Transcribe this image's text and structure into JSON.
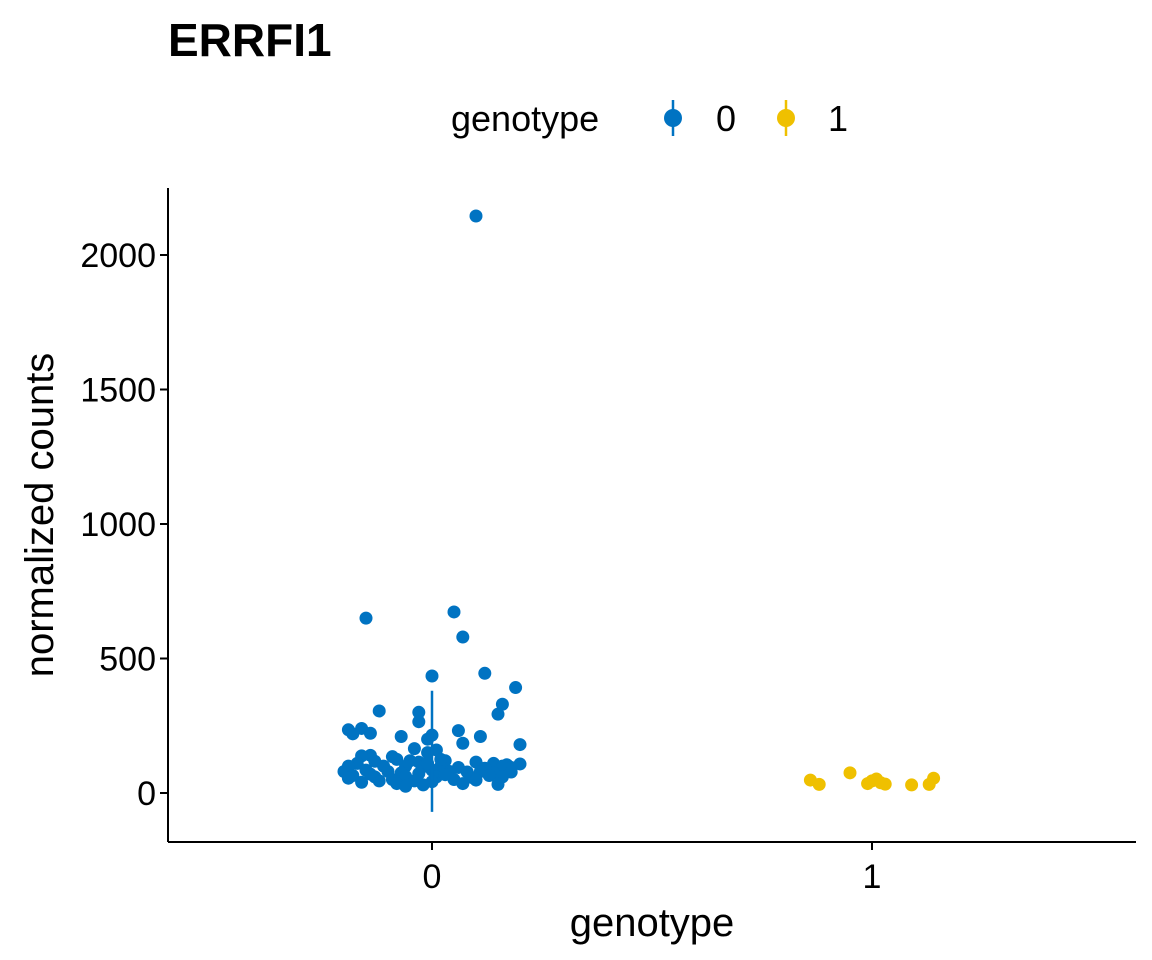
{
  "chart_data": {
    "type": "scatter",
    "title": "ERRFI1",
    "xlabel": "genotype",
    "ylabel": "normalized counts",
    "categories": [
      "0",
      "1"
    ],
    "ylim": [
      -180,
      2250
    ],
    "yticks": [
      0,
      500,
      1000,
      1500,
      2000
    ],
    "grid": false,
    "legend": {
      "title": "genotype",
      "position": "top",
      "entries": [
        "0",
        "1"
      ]
    },
    "colors": {
      "0": "#0073C2",
      "1": "#EFC000"
    },
    "series": [
      {
        "name": "0",
        "error_bar": {
          "x": 0,
          "low": -70,
          "high": 380
        },
        "points": [
          {
            "x": 0.1,
            "y": 2145
          },
          {
            "x": 0.05,
            "y": 673
          },
          {
            "x": -0.15,
            "y": 650
          },
          {
            "x": 0.07,
            "y": 580
          },
          {
            "x": 0.12,
            "y": 445
          },
          {
            "x": 0.0,
            "y": 435
          },
          {
            "x": 0.19,
            "y": 392
          },
          {
            "x": 0.16,
            "y": 330
          },
          {
            "x": -0.12,
            "y": 305
          },
          {
            "x": -0.03,
            "y": 300
          },
          {
            "x": 0.15,
            "y": 293
          },
          {
            "x": -0.03,
            "y": 265
          },
          {
            "x": -0.19,
            "y": 235
          },
          {
            "x": -0.16,
            "y": 240
          },
          {
            "x": 0.06,
            "y": 232
          },
          {
            "x": -0.18,
            "y": 220
          },
          {
            "x": 0.0,
            "y": 215
          },
          {
            "x": 0.11,
            "y": 210
          },
          {
            "x": -0.07,
            "y": 210
          },
          {
            "x": -0.14,
            "y": 222
          },
          {
            "x": -0.01,
            "y": 200
          },
          {
            "x": 0.07,
            "y": 185
          },
          {
            "x": 0.2,
            "y": 180
          },
          {
            "x": -0.04,
            "y": 165
          },
          {
            "x": 0.01,
            "y": 160
          },
          {
            "x": -0.01,
            "y": 150
          },
          {
            "x": -0.14,
            "y": 140
          },
          {
            "x": -0.16,
            "y": 138
          },
          {
            "x": -0.09,
            "y": 135
          },
          {
            "x": -0.08,
            "y": 125
          },
          {
            "x": -0.05,
            "y": 120
          },
          {
            "x": -0.13,
            "y": 118
          },
          {
            "x": -0.17,
            "y": 110
          },
          {
            "x": -0.03,
            "y": 115
          },
          {
            "x": 0.03,
            "y": 120
          },
          {
            "x": 0.1,
            "y": 115
          },
          {
            "x": 0.14,
            "y": 110
          },
          {
            "x": 0.17,
            "y": 105
          },
          {
            "x": 0.2,
            "y": 108
          },
          {
            "x": -0.19,
            "y": 100
          },
          {
            "x": -0.11,
            "y": 100
          },
          {
            "x": -0.06,
            "y": 100
          },
          {
            "x": -0.02,
            "y": 98
          },
          {
            "x": 0.02,
            "y": 100
          },
          {
            "x": 0.06,
            "y": 95
          },
          {
            "x": 0.12,
            "y": 92
          },
          {
            "x": 0.16,
            "y": 100
          },
          {
            "x": 0.18,
            "y": 95
          },
          {
            "x": -0.2,
            "y": 80
          },
          {
            "x": -0.15,
            "y": 85
          },
          {
            "x": -0.1,
            "y": 80
          },
          {
            "x": -0.07,
            "y": 75
          },
          {
            "x": -0.03,
            "y": 72
          },
          {
            "x": 0.0,
            "y": 85
          },
          {
            "x": 0.04,
            "y": 80
          },
          {
            "x": 0.08,
            "y": 78
          },
          {
            "x": 0.11,
            "y": 80
          },
          {
            "x": 0.14,
            "y": 75
          },
          {
            "x": 0.18,
            "y": 78
          },
          {
            "x": -0.18,
            "y": 65
          },
          {
            "x": -0.13,
            "y": 60
          },
          {
            "x": -0.06,
            "y": 62
          },
          {
            "x": 0.01,
            "y": 60
          },
          {
            "x": 0.09,
            "y": 58
          },
          {
            "x": 0.16,
            "y": 60
          },
          {
            "x": -0.19,
            "y": 55
          },
          {
            "x": -0.12,
            "y": 45
          },
          {
            "x": -0.16,
            "y": 40
          },
          {
            "x": -0.09,
            "y": 50
          },
          {
            "x": -0.04,
            "y": 45
          },
          {
            "x": 0.0,
            "y": 42
          },
          {
            "x": 0.05,
            "y": 50
          },
          {
            "x": 0.07,
            "y": 35
          },
          {
            "x": 0.1,
            "y": 48
          },
          {
            "x": 0.15,
            "y": 32
          },
          {
            "x": -0.08,
            "y": 35
          },
          {
            "x": -0.02,
            "y": 30
          },
          {
            "x": -0.14,
            "y": 70
          },
          {
            "x": 0.13,
            "y": 65
          },
          {
            "x": 0.03,
            "y": 68
          },
          {
            "x": -0.01,
            "y": 110
          },
          {
            "x": -0.06,
            "y": 25
          },
          {
            "x": 0.02,
            "y": 125
          }
        ]
      },
      {
        "name": "1",
        "error_bar": {
          "x": 1,
          "low": 30,
          "high": 55
        },
        "points": [
          {
            "x": 0.86,
            "y": 48
          },
          {
            "x": 0.88,
            "y": 32
          },
          {
            "x": 0.95,
            "y": 75
          },
          {
            "x": 0.99,
            "y": 35
          },
          {
            "x": 1.0,
            "y": 45
          },
          {
            "x": 1.01,
            "y": 52
          },
          {
            "x": 1.02,
            "y": 38
          },
          {
            "x": 1.03,
            "y": 33
          },
          {
            "x": 1.09,
            "y": 30
          },
          {
            "x": 1.13,
            "y": 32
          },
          {
            "x": 1.14,
            "y": 55
          }
        ]
      }
    ]
  }
}
